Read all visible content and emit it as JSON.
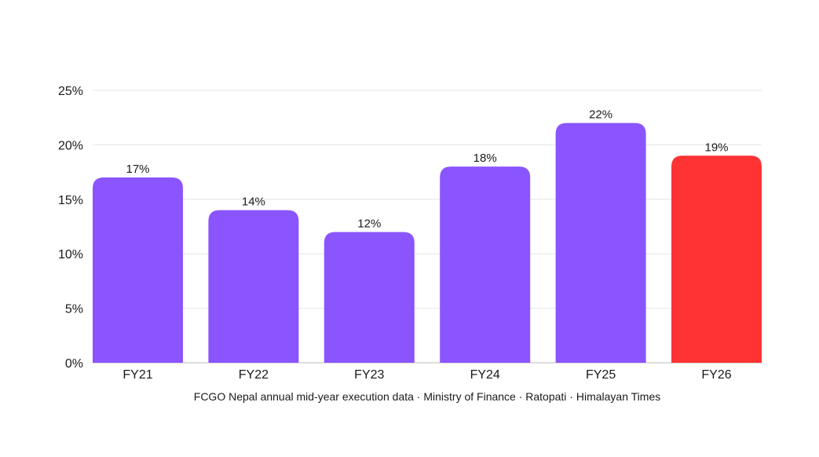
{
  "chart_data": {
    "type": "bar",
    "categories": [
      "FY21",
      "FY22",
      "FY23",
      "FY24",
      "FY25",
      "FY26"
    ],
    "values": [
      17,
      14,
      12,
      18,
      22,
      19
    ],
    "data_labels": [
      "17%",
      "14%",
      "12%",
      "18%",
      "22%",
      "19%"
    ],
    "title": "",
    "xlabel": "",
    "ylabel": "",
    "ylim": [
      0,
      25
    ],
    "yticks": [
      0,
      5,
      10,
      15,
      20,
      25
    ],
    "ytick_labels": [
      "0%",
      "5%",
      "10%",
      "15%",
      "20%",
      "25%"
    ],
    "grid": true,
    "legend": "none",
    "bar_colors": [
      "#8a55ff",
      "#8a55ff",
      "#8a55ff",
      "#8a55ff",
      "#8a55ff",
      "#ff3333"
    ]
  },
  "source_note": "FCGO Nepal annual mid-year execution data · Ministry of Finance · Ratopati · Himalayan Times"
}
